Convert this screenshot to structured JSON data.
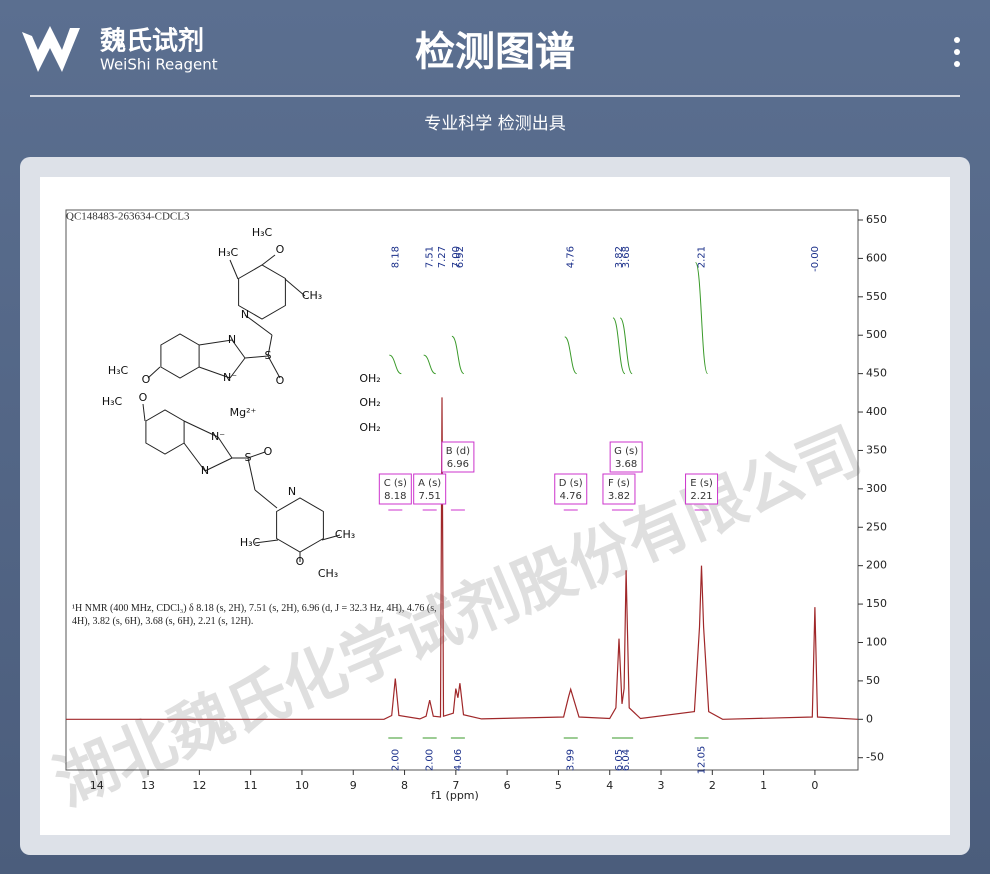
{
  "header": {
    "brand": "魏氏试剂",
    "brand_en": "WeiShi Reagent",
    "title": "检测图谱",
    "subtitle": "专业科学  检测出具"
  },
  "watermark": "湖北魏氏化学试剂股份有限公司",
  "chart_data": {
    "type": "line",
    "title": "QC148483-263634-CDCL3",
    "x_label": "f1 (ppm)",
    "description": "¹H NMR (400 MHz, CDCl₃) δ 8.18 (s, 2H), 7.51 (s, 2H), 6.96 (d, J = 32.3 Hz, 4H), 4.76 (s, 4H), 3.82 (s, 6H), 3.68 (s, 6H), 2.21 (s, 12H).",
    "xlim": [
      14.6,
      -0.84
    ],
    "ylim": [
      -66,
      663
    ],
    "xticks": [
      14,
      13,
      12,
      11,
      10,
      9,
      8,
      7,
      6,
      5,
      4,
      3,
      2,
      1,
      0
    ],
    "yticks": [
      -50,
      0,
      50,
      100,
      150,
      200,
      250,
      300,
      350,
      400,
      450,
      500,
      550,
      600,
      650
    ],
    "series": [
      {
        "color": "#a0282a",
        "x": [
          14.6,
          8.4,
          8.25,
          8.18,
          8.11,
          7.7,
          7.58,
          7.51,
          7.44,
          7.3,
          7.27,
          7.24,
          7.05,
          7.0,
          6.96,
          6.92,
          6.85,
          6.5,
          4.9,
          4.8,
          4.76,
          4.72,
          4.6,
          4.0,
          3.88,
          3.82,
          3.76,
          3.72,
          3.68,
          3.62,
          3.4,
          2.35,
          2.25,
          2.21,
          2.17,
          2.07,
          1.8,
          0.05,
          0.0,
          -0.05,
          -0.84
        ],
        "values": [
          0,
          0,
          5,
          53,
          5,
          0.5,
          4,
          25,
          4,
          3,
          419,
          4,
          8,
          40,
          28,
          47,
          6,
          0.5,
          3,
          30,
          39,
          30,
          3,
          1,
          15,
          105,
          20,
          40,
          194,
          15,
          1,
          10,
          120,
          200,
          120,
          10,
          0,
          3,
          146,
          3,
          0
        ]
      }
    ],
    "peak_labels": [
      {
        "value": 8.18,
        "label": "8.18"
      },
      {
        "value": 7.51,
        "label": "7.51"
      },
      {
        "value": 7.27,
        "label": "7.27"
      },
      {
        "value": 7.0,
        "label": "7.00"
      },
      {
        "value": 6.92,
        "label": "6.92"
      },
      {
        "value": 4.76,
        "label": "4.76"
      },
      {
        "value": 3.82,
        "label": "3.82"
      },
      {
        "value": 3.68,
        "label": "3.68"
      },
      {
        "value": 2.21,
        "label": "2.21"
      },
      {
        "value": 0,
        "label": "-0.00"
      }
    ],
    "multiplets": [
      {
        "name": "C (s)",
        "shift": 8.18
      },
      {
        "name": "A (s)",
        "shift": 7.51
      },
      {
        "name": "B (d)",
        "shift": 6.96
      },
      {
        "name": "D (s)",
        "shift": 4.76
      },
      {
        "name": "F (s)",
        "shift": 3.82
      },
      {
        "name": "G (s)",
        "shift": 3.68
      },
      {
        "name": "E (s)",
        "shift": 2.21
      }
    ],
    "integrals": [
      {
        "value": 2,
        "label": "2.00"
      },
      {
        "value": 2,
        "label": "2.00"
      },
      {
        "value": 4.06,
        "label": "4.06"
      },
      {
        "value": 3.99,
        "label": "3.99"
      },
      {
        "value": 6.05,
        "label": "6.05"
      },
      {
        "value": 6.04,
        "label": "6.04"
      },
      {
        "value": 12.05,
        "label": "12.05"
      }
    ],
    "structure_labels": [
      "H₃C",
      "O",
      "H₃C",
      "CH₃",
      "N",
      "N",
      "N⁻",
      "S",
      "O",
      "H₃C",
      "O",
      "H₃C",
      "O",
      "N⁻",
      "Mg²⁺",
      "N",
      "S",
      "O",
      "N",
      "H₃C",
      "O",
      "CH₃",
      "CH₃",
      "OH₂",
      "OH₂",
      "OH₂"
    ]
  }
}
